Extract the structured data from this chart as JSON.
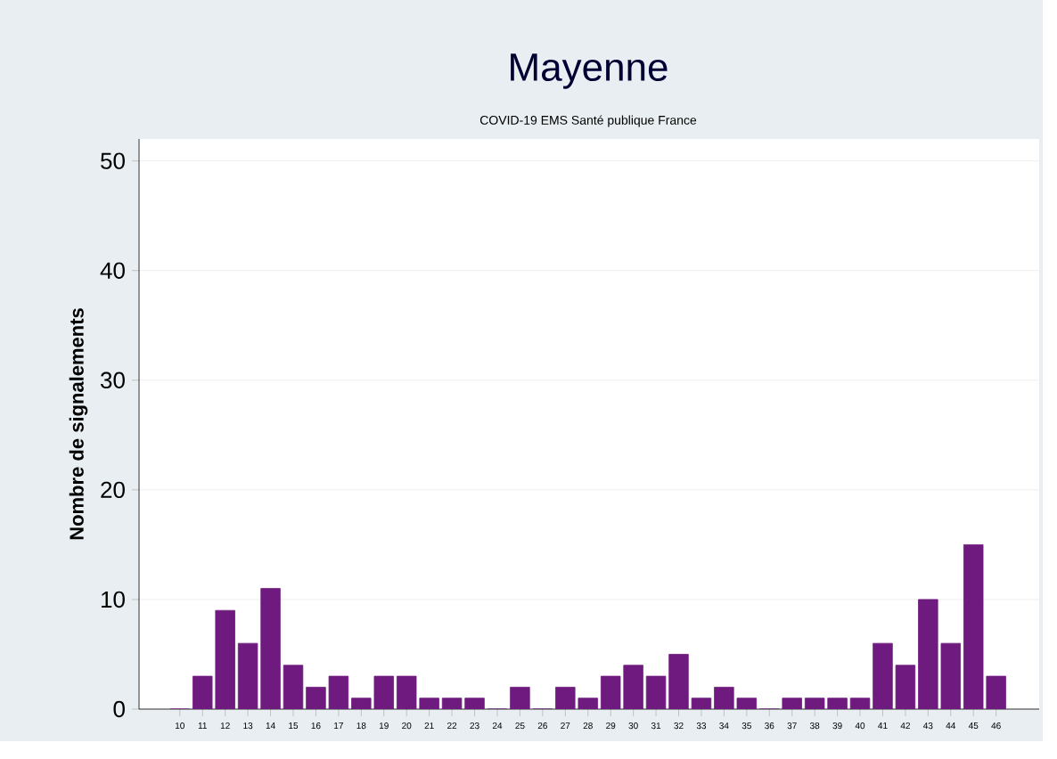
{
  "chart_data": {
    "type": "bar",
    "title": "Mayenne",
    "subtitle": "COVID-19 EMS Santé publique France",
    "ylabel": "Nombre de signalements",
    "categories": [
      "10",
      "11",
      "12",
      "13",
      "14",
      "15",
      "16",
      "17",
      "18",
      "19",
      "20",
      "21",
      "22",
      "23",
      "24",
      "25",
      "26",
      "27",
      "28",
      "29",
      "30",
      "31",
      "32",
      "33",
      "34",
      "35",
      "36",
      "37",
      "38",
      "39",
      "40",
      "41",
      "42",
      "43",
      "44",
      "45",
      "46"
    ],
    "values": [
      0,
      3,
      9,
      6,
      11,
      4,
      2,
      3,
      1,
      3,
      3,
      1,
      1,
      1,
      0,
      2,
      0,
      2,
      1,
      3,
      4,
      3,
      5,
      1,
      2,
      1,
      0,
      1,
      1,
      1,
      1,
      6,
      4,
      10,
      6,
      15,
      3
    ],
    "color": "#6e1a7e",
    "ylim": [
      0,
      52
    ],
    "yticks": [
      0,
      10,
      20,
      30,
      40,
      50
    ],
    "grid": "y"
  }
}
